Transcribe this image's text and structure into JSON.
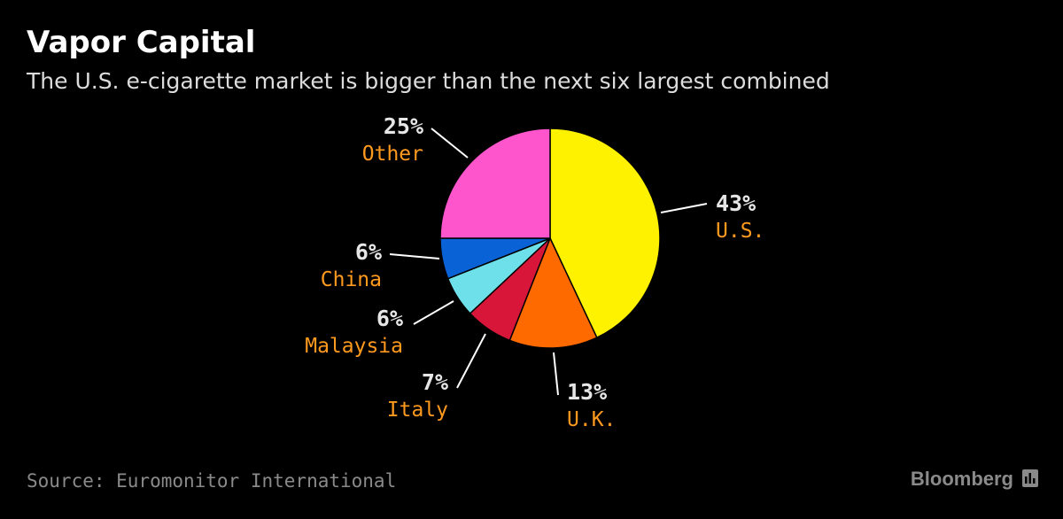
{
  "header": {
    "title": "Vapor Capital",
    "subtitle": "The U.S. e-cigarette market is bigger than the next six largest combined"
  },
  "footer": {
    "source": "Source: Euromonitor International",
    "brand": "Bloomberg",
    "brand_icon": "bloomberg-bars-icon"
  },
  "colors": {
    "background": "#000000",
    "label_value": "#e6e6e6",
    "label_name": "#ff9a1f",
    "leader_line": "#ffffff"
  },
  "chart_data": {
    "type": "pie",
    "start": "12 o'clock",
    "direction": "clockwise",
    "slices": [
      {
        "label": "U.S.",
        "value": 43,
        "value_label": "43%",
        "color": "#fff200"
      },
      {
        "label": "U.K.",
        "value": 13,
        "value_label": "13%",
        "color": "#ff6a00"
      },
      {
        "label": "Italy",
        "value": 7,
        "value_label": "7%",
        "color": "#d7163a"
      },
      {
        "label": "Malaysia",
        "value": 6,
        "value_label": "6%",
        "color": "#6ee0ea"
      },
      {
        "label": "China",
        "value": 6,
        "value_label": "6%",
        "color": "#0a63d6"
      },
      {
        "label": "Other",
        "value": 25,
        "value_label": "25%",
        "color": "#ff55cc"
      }
    ]
  }
}
